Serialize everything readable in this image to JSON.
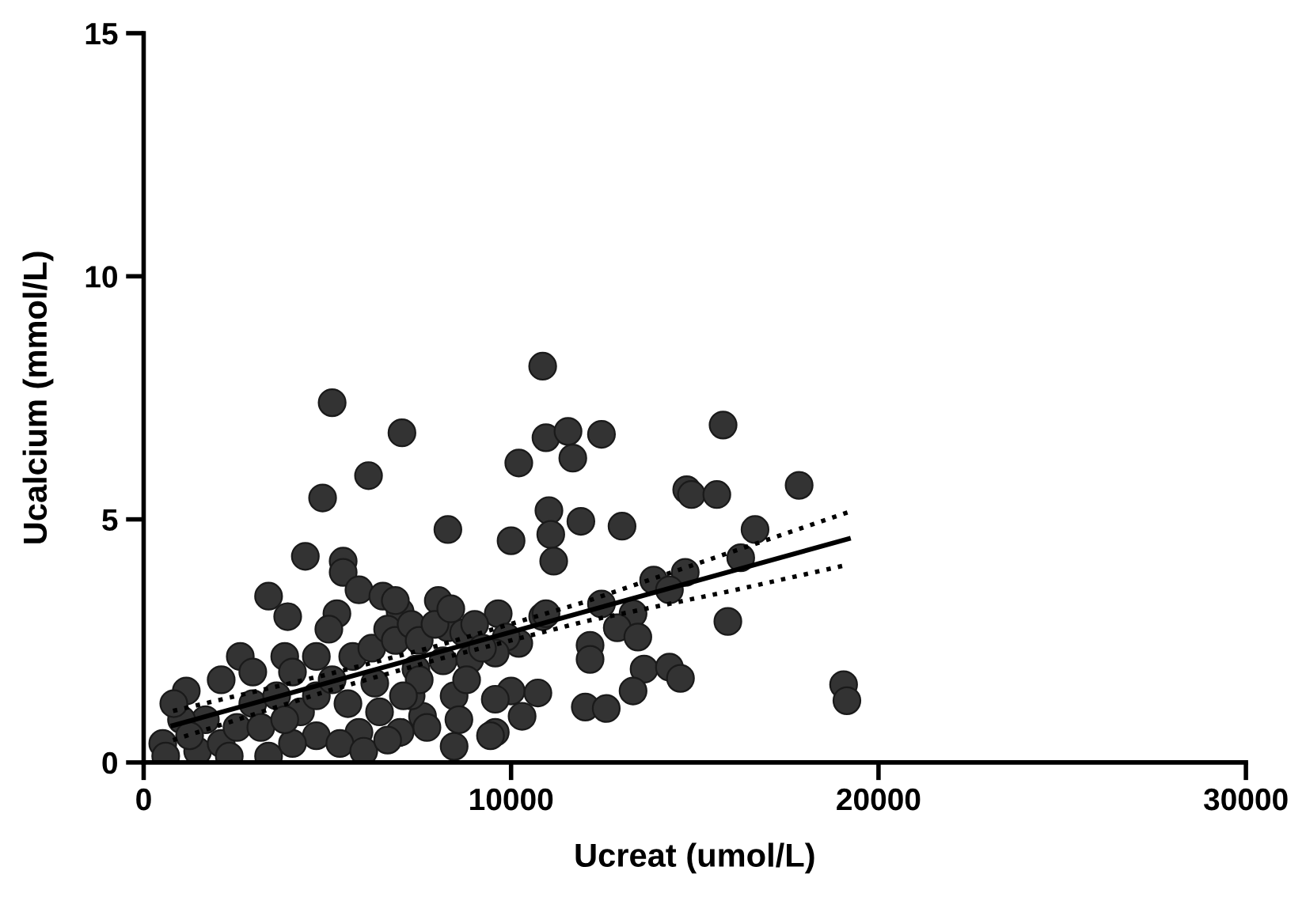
{
  "chart_data": {
    "type": "scatter",
    "xlabel": "Ucreat (umol/L)",
    "ylabel": "Ucalcium (mmol/L)",
    "xlim": [
      0,
      30000
    ],
    "ylim": [
      0,
      15
    ],
    "xticks": [
      0,
      10000,
      20000,
      30000
    ],
    "yticks": [
      0,
      5,
      10,
      15
    ],
    "grid": false,
    "legend": false,
    "series": [
      {
        "marker": "circle",
        "color": "#333333",
        "x": [
          5130,
          7030,
          6120,
          4870,
          4400,
          5430,
          10860,
          10950,
          11550,
          12460,
          11680,
          10210,
          11030,
          11080,
          11160,
          10000,
          11900,
          13020,
          8280,
          14780,
          14910,
          15600,
          15770,
          17840,
          16640,
          16250,
          15900,
          19050,
          19140,
          14740,
          13880,
          14310,
          12460,
          10860,
          9650,
          13320,
          12890,
          13450,
          12150,
          12150,
          10210,
          13620,
          14310,
          14610,
          13320,
          10000,
          10730,
          9570,
          12020,
          12590,
          10300,
          9570,
          8450,
          3400,
          3920,
          5260,
          5040,
          8020,
          10950,
          5430,
          5860,
          6510,
          6980,
          9870,
          8280,
          8710,
          9570,
          2630,
          1160,
          3840,
          4700,
          5690,
          7410,
          8150,
          8880,
          6290,
          8450,
          9440,
          6980,
          5860,
          7590,
          520,
          600,
          1470,
          2110,
          2540,
          2970,
          3620,
          4270,
          4700,
          5340,
          5990,
          6640,
          1680,
          1030,
          2330,
          3400,
          4050,
          4700,
          5560,
          6420,
          7280,
          7710,
          7500,
          6210,
          6640,
          6850,
          7280,
          6850,
          7500,
          7930,
          8360,
          9010,
          9220,
          8790,
          8580,
          7070,
          2110,
          2970,
          4050,
          5130,
          1250,
          3190,
          3840,
          820
        ],
        "values": [
          7.4,
          6.78,
          5.9,
          5.44,
          4.24,
          4.14,
          8.15,
          6.68,
          6.81,
          6.75,
          6.26,
          6.16,
          5.18,
          4.69,
          4.14,
          4.56,
          4.96,
          4.86,
          4.79,
          5.61,
          5.51,
          5.51,
          6.94,
          5.7,
          4.79,
          4.21,
          2.9,
          1.6,
          1.27,
          3.91,
          3.75,
          3.55,
          3.26,
          3.0,
          3.06,
          3.06,
          2.77,
          2.58,
          2.41,
          2.12,
          2.45,
          1.92,
          1.96,
          1.73,
          1.47,
          1.47,
          1.43,
          1.3,
          1.14,
          1.11,
          0.95,
          0.62,
          0.33,
          3.42,
          3.0,
          3.06,
          2.74,
          3.33,
          3.06,
          3.91,
          3.55,
          3.42,
          3.1,
          2.58,
          2.77,
          2.67,
          2.25,
          2.18,
          1.47,
          2.18,
          2.18,
          2.18,
          1.92,
          2.09,
          2.12,
          1.63,
          1.37,
          0.55,
          0.62,
          0.62,
          0.95,
          0.39,
          0.13,
          0.23,
          0.39,
          0.72,
          1.21,
          1.37,
          1.04,
          0.55,
          0.39,
          0.23,
          0.46,
          0.88,
          0.88,
          0.13,
          0.13,
          0.39,
          1.37,
          1.21,
          1.04,
          1.37,
          0.72,
          1.7,
          2.35,
          2.74,
          2.51,
          2.84,
          3.33,
          2.51,
          2.84,
          3.16,
          2.84,
          2.35,
          1.7,
          0.88,
          1.37,
          1.7,
          1.86,
          1.86,
          1.7,
          0.55,
          0.72,
          0.88,
          1.21
        ]
      },
      {
        "type": "line",
        "line_style": "solid",
        "color": "#000000",
        "x": [
          800,
          19180
        ],
        "values": [
          0.76,
          4.6
        ]
      },
      {
        "type": "line",
        "line_style": "dotted",
        "color": "#000000",
        "x": [
          800,
          5000,
          8000,
          12000,
          16000,
          19180
        ],
        "values": [
          1.06,
          1.81,
          2.4,
          3.3,
          4.33,
          5.15
        ]
      },
      {
        "type": "line",
        "line_style": "dotted",
        "color": "#000000",
        "x": [
          800,
          5000,
          8000,
          12000,
          16000,
          19180
        ],
        "values": [
          0.46,
          1.47,
          2.12,
          2.9,
          3.53,
          4.07
        ]
      }
    ]
  }
}
